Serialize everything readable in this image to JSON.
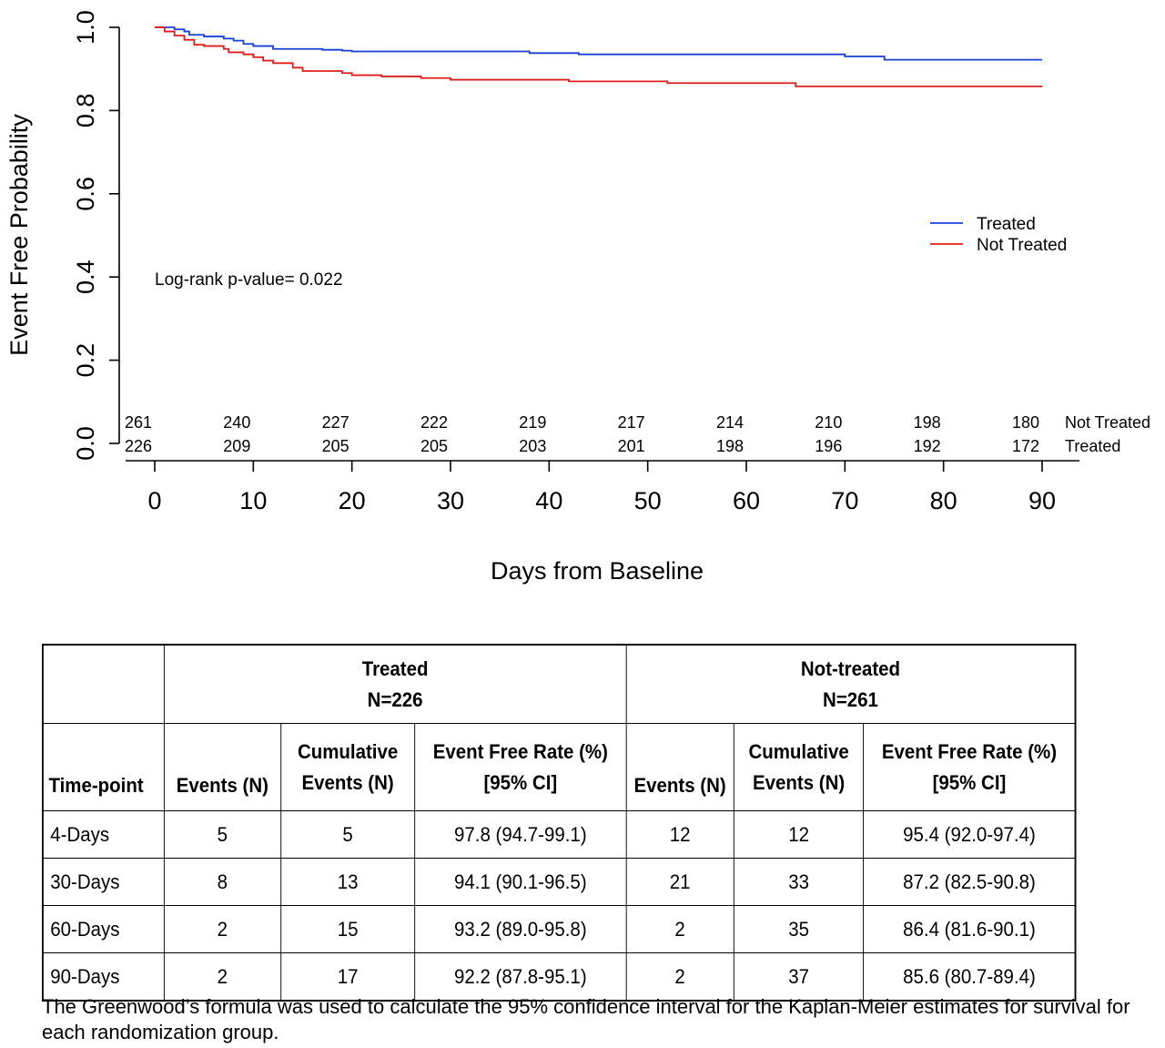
{
  "chart_data": {
    "type": "line",
    "ylabel": "Event Free Probability",
    "xlabel": "Days from Baseline",
    "xlim": [
      0,
      90
    ],
    "ylim": [
      0,
      1
    ],
    "xticks": [
      "0",
      "10",
      "20",
      "30",
      "40",
      "50",
      "60",
      "70",
      "80",
      "90"
    ],
    "yticks": [
      "0.0",
      "0.2",
      "0.4",
      "0.6",
      "0.8",
      "1.0"
    ],
    "legend_position": "right",
    "annotation": "Log-rank p-value= 0.022",
    "series": [
      {
        "name": "Treated",
        "color": "#1a3fd6",
        "steps": [
          [
            0,
            1.0
          ],
          [
            2,
            0.995
          ],
          [
            3,
            0.99
          ],
          [
            3.5,
            0.982
          ],
          [
            5,
            0.978
          ],
          [
            7,
            0.973
          ],
          [
            8,
            0.968
          ],
          [
            9,
            0.96
          ],
          [
            10,
            0.955
          ],
          [
            12,
            0.948
          ],
          [
            17,
            0.946
          ],
          [
            19,
            0.944
          ],
          [
            20,
            0.942
          ],
          [
            38,
            0.938
          ],
          [
            43,
            0.935
          ],
          [
            70,
            0.93
          ],
          [
            74,
            0.922
          ],
          [
            90,
            0.922
          ]
        ]
      },
      {
        "name": "Not Treated",
        "color": "#e01e1e",
        "steps": [
          [
            0,
            1.0
          ],
          [
            1,
            0.99
          ],
          [
            2,
            0.98
          ],
          [
            3,
            0.97
          ],
          [
            4,
            0.958
          ],
          [
            5,
            0.955
          ],
          [
            7,
            0.948
          ],
          [
            7.5,
            0.94
          ],
          [
            9,
            0.935
          ],
          [
            10,
            0.928
          ],
          [
            11,
            0.92
          ],
          [
            12,
            0.914
          ],
          [
            14,
            0.903
          ],
          [
            15,
            0.895
          ],
          [
            19,
            0.89
          ],
          [
            20,
            0.885
          ],
          [
            23,
            0.882
          ],
          [
            27,
            0.878
          ],
          [
            30,
            0.874
          ],
          [
            42,
            0.87
          ],
          [
            52,
            0.866
          ],
          [
            65,
            0.858
          ],
          [
            90,
            0.858
          ]
        ]
      }
    ],
    "risk_table": {
      "times": [
        0,
        10,
        20,
        30,
        40,
        50,
        60,
        70,
        80,
        90
      ],
      "rows": [
        {
          "label": "Not Treated",
          "values": [
            "261",
            "240",
            "227",
            "222",
            "219",
            "217",
            "214",
            "210",
            "198",
            "180"
          ]
        },
        {
          "label": "Treated",
          "values": [
            "226",
            "209",
            "205",
            "205",
            "203",
            "201",
            "198",
            "196",
            "192",
            "172"
          ]
        }
      ]
    }
  },
  "table": {
    "header": {
      "treated_title": "Treated",
      "treated_n": "N=226",
      "not_treated_title": "Not-treated",
      "not_treated_n": "N=261"
    },
    "columns": {
      "timepoint": "Time-point",
      "events": "Events (N)",
      "cumulative_1": "Cumulative",
      "cumulative_2": "Events (N)",
      "rate_1": "Event Free Rate (%)",
      "rate_2": "[95% CI]"
    },
    "rows": [
      {
        "timepoint": "4-Days",
        "t_events": "5",
        "t_cum": "5",
        "t_rate": "97.8 (94.7-99.1)",
        "n_events": "12",
        "n_cum": "12",
        "n_rate": "95.4 (92.0-97.4)"
      },
      {
        "timepoint": "30-Days",
        "t_events": "8",
        "t_cum": "13",
        "t_rate": "94.1 (90.1-96.5)",
        "n_events": "21",
        "n_cum": "33",
        "n_rate": "87.2 (82.5-90.8)"
      },
      {
        "timepoint": "60-Days",
        "t_events": "2",
        "t_cum": "15",
        "t_rate": "93.2 (89.0-95.8)",
        "n_events": "2",
        "n_cum": "35",
        "n_rate": "86.4 (81.6-90.1)"
      },
      {
        "timepoint": "90-Days",
        "t_events": "2",
        "t_cum": "17",
        "t_rate": "92.2 (87.8-95.1)",
        "n_events": "2",
        "n_cum": "37",
        "n_rate": "85.6 (80.7-89.4)"
      }
    ]
  },
  "footnote": "The Greenwood’s formula was used to calculate the 95% confidence interval for the Kaplan-Meier estimates for survival for each randomization group."
}
